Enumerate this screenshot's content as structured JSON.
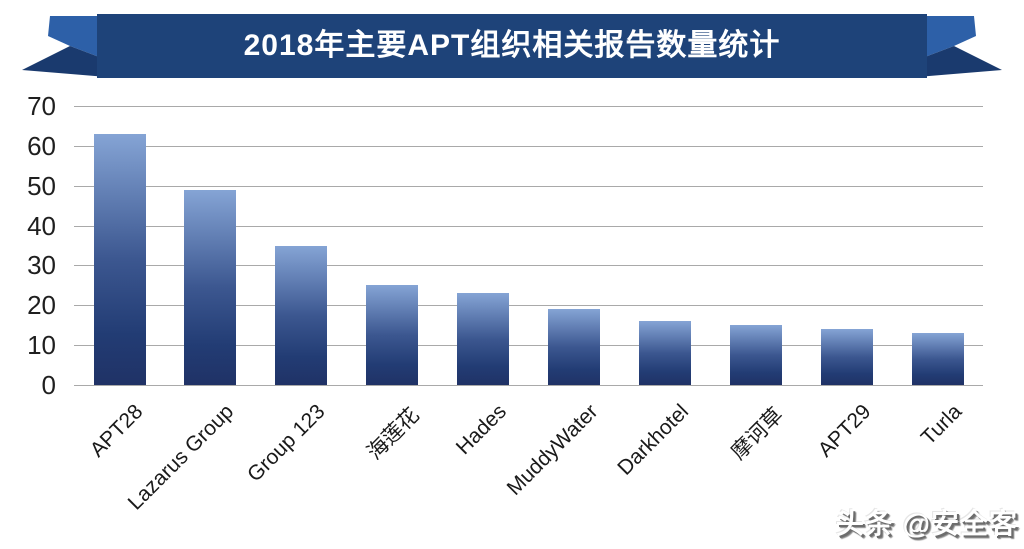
{
  "banner": {
    "band_color": "#1e4379",
    "tail_color": "#2d60a8",
    "fold_color": "#1a3a6e"
  },
  "watermark": {
    "text": "头条 @安全客"
  },
  "chart_data": {
    "type": "bar",
    "title": "2018年主要APT组织相关报告数量统计",
    "categories": [
      "APT28",
      "Lazarus Group",
      "Group 123",
      "海莲花",
      "Hades",
      "MuddyWater",
      "Darkhotel",
      "摩诃草",
      "APT29",
      "Turla"
    ],
    "values": [
      63,
      49,
      35,
      25,
      23,
      19,
      16,
      15,
      14,
      13
    ],
    "xlabel": "",
    "ylabel": "",
    "ylim": [
      0,
      70
    ],
    "yticks": [
      0,
      10,
      20,
      30,
      40,
      50,
      60,
      70
    ],
    "grid": true,
    "legend": "none",
    "gridline_color": "#a9a9a9",
    "bar_gradient": [
      "#85a4d5",
      "#3c5790",
      "#223c74",
      "#203266"
    ],
    "xlabel_rotation_deg": -45
  }
}
